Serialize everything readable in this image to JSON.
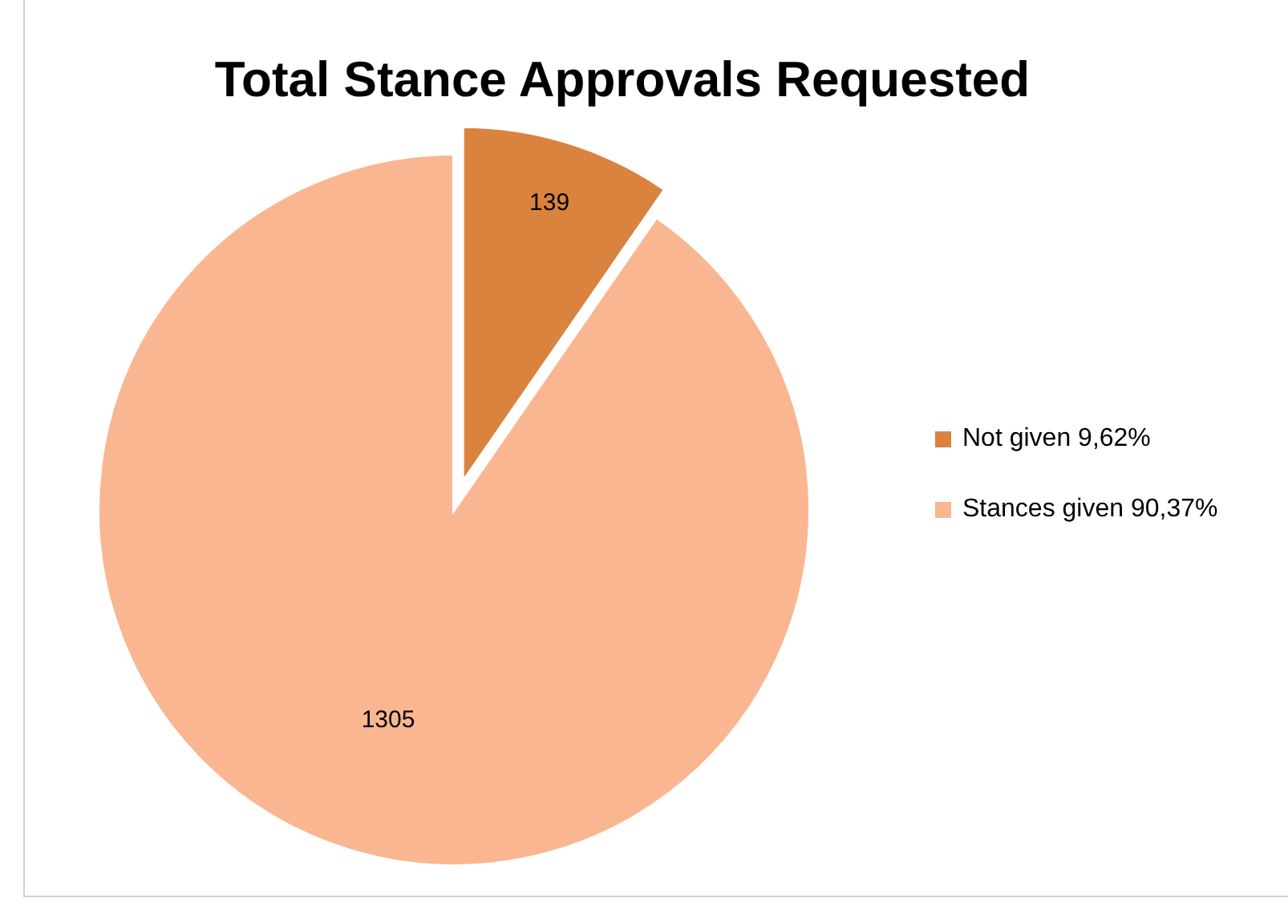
{
  "chart_data": {
    "type": "pie",
    "title": "Total Stance Approvals Requested",
    "categories": [
      "Not given 9,62%",
      "Stances given 90,37%"
    ],
    "values": [
      139,
      1305
    ],
    "colors": [
      "#d9833f",
      "#f9b690"
    ],
    "data_labels": true,
    "legend": "right"
  }
}
